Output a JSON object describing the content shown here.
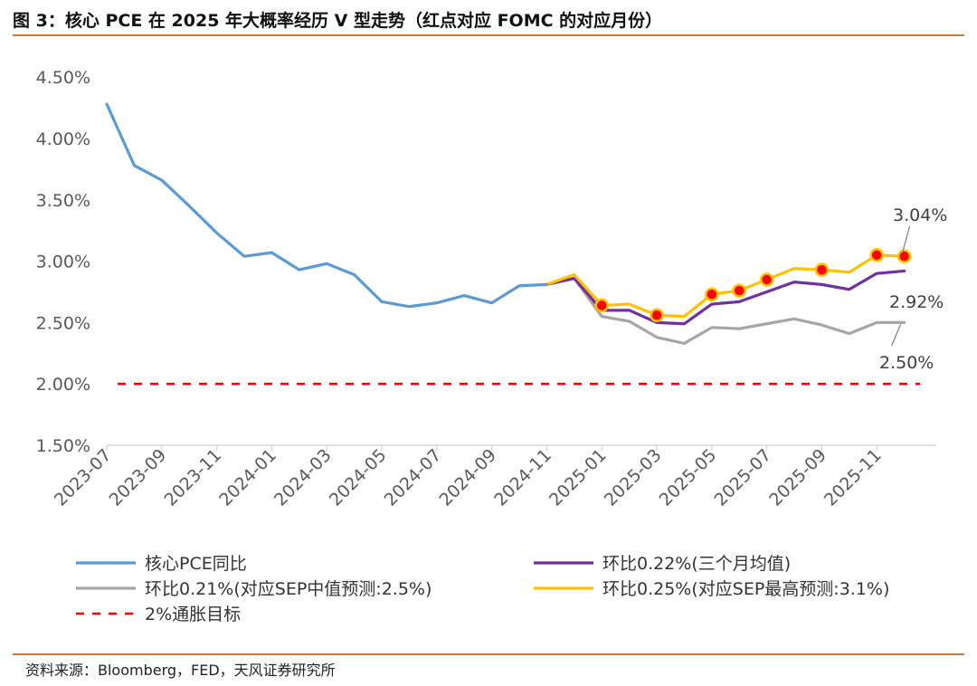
{
  "title": "图 3：核心 PCE 在 2025 年大概率经历 V 型走势（红点对应 FOMC 的对应月份）",
  "source": "资料来源：Bloomberg，FED，天风证券研究所",
  "chart_data": {
    "type": "line",
    "title": "",
    "xlabel": "",
    "ylabel": "",
    "ylim": [
      1.5,
      4.5
    ],
    "yticks": [
      "1.50%",
      "2.00%",
      "2.50%",
      "3.00%",
      "3.50%",
      "4.00%",
      "4.50%"
    ],
    "ytick_values": [
      1.5,
      2.0,
      2.5,
      3.0,
      3.5,
      4.0,
      4.5
    ],
    "x_dates": [
      "2023-07",
      "2023-08",
      "2023-09",
      "2023-10",
      "2023-11",
      "2023-12",
      "2024-01",
      "2024-02",
      "2024-03",
      "2024-04",
      "2024-05",
      "2024-06",
      "2024-07",
      "2024-08",
      "2024-09",
      "2024-10",
      "2024-11",
      "2024-12",
      "2025-01",
      "2025-02",
      "2025-03",
      "2025-04",
      "2025-05",
      "2025-06",
      "2025-07",
      "2025-08",
      "2025-09",
      "2025-10",
      "2025-11",
      "2025-12"
    ],
    "xtick_labels": [
      "2023-07",
      "2023-09",
      "2023-11",
      "2024-01",
      "2024-03",
      "2024-05",
      "2024-07",
      "2024-09",
      "2024-11",
      "2025-01",
      "2025-03",
      "2025-05",
      "2025-07",
      "2025-09",
      "2025-11"
    ],
    "grid": false,
    "legend_position": "bottom",
    "colors": {
      "actual": "#5b9bd5",
      "mom022": "#7030a0",
      "mom021": "#a6a6a6",
      "mom025": "#ffc000",
      "target": "#ff0000",
      "fomc_fill": "#ff0000",
      "fomc_stroke": "#ffc000"
    },
    "series": [
      {
        "name": "核心PCE同比",
        "color": "#5b9bd5",
        "dash": false,
        "x": [
          "2023-07",
          "2023-08",
          "2023-09",
          "2023-10",
          "2023-11",
          "2023-12",
          "2024-01",
          "2024-02",
          "2024-03",
          "2024-04",
          "2024-05",
          "2024-06",
          "2024-07",
          "2024-08",
          "2024-09",
          "2024-10",
          "2024-11"
        ],
        "values": [
          4.28,
          3.78,
          3.66,
          3.45,
          3.23,
          3.04,
          3.07,
          2.93,
          2.98,
          2.89,
          2.67,
          2.63,
          2.66,
          2.72,
          2.66,
          2.8,
          2.81
        ]
      },
      {
        "name": "环比0.22%(三个月均值)",
        "color": "#7030a0",
        "dash": false,
        "x": [
          "2024-11",
          "2024-12",
          "2025-01",
          "2025-02",
          "2025-03",
          "2025-04",
          "2025-05",
          "2025-06",
          "2025-07",
          "2025-08",
          "2025-09",
          "2025-10",
          "2025-11",
          "2025-12"
        ],
        "values": [
          2.81,
          2.86,
          2.6,
          2.6,
          2.5,
          2.49,
          2.65,
          2.67,
          2.75,
          2.83,
          2.81,
          2.77,
          2.9,
          2.92
        ]
      },
      {
        "name": "环比0.21%(对应SEP中值预测:2.5%)",
        "color": "#a6a6a6",
        "dash": false,
        "x": [
          "2024-11",
          "2024-12",
          "2025-01",
          "2025-02",
          "2025-03",
          "2025-04",
          "2025-05",
          "2025-06",
          "2025-07",
          "2025-08",
          "2025-09",
          "2025-10",
          "2025-11",
          "2025-12"
        ],
        "values": [
          2.81,
          2.86,
          2.55,
          2.51,
          2.38,
          2.33,
          2.46,
          2.45,
          2.49,
          2.53,
          2.48,
          2.41,
          2.5,
          2.5
        ]
      },
      {
        "name": "环比0.25%(对应SEP最高预测:3.1%)",
        "color": "#ffc000",
        "dash": false,
        "x": [
          "2024-11",
          "2024-12",
          "2025-01",
          "2025-02",
          "2025-03",
          "2025-04",
          "2025-05",
          "2025-06",
          "2025-07",
          "2025-08",
          "2025-09",
          "2025-10",
          "2025-11",
          "2025-12"
        ],
        "values": [
          2.81,
          2.89,
          2.64,
          2.65,
          2.56,
          2.55,
          2.73,
          2.76,
          2.85,
          2.94,
          2.93,
          2.91,
          3.05,
          3.04
        ]
      },
      {
        "name": "2%通胀目标",
        "color": "#ff0000",
        "dash": true,
        "x": [
          "2023-07",
          "2025-12"
        ],
        "values": [
          2.0,
          2.0
        ]
      }
    ],
    "fomc_points": {
      "x": [
        "2025-01",
        "2025-03",
        "2025-05",
        "2025-06",
        "2025-07",
        "2025-09",
        "2025-11",
        "2025-12"
      ],
      "values": [
        2.64,
        2.56,
        2.73,
        2.76,
        2.85,
        2.93,
        3.05,
        3.04
      ]
    },
    "annotations": [
      {
        "text": "3.04%",
        "x": "2025-12",
        "y": 3.04
      },
      {
        "text": "2.92%",
        "x": "2025-12",
        "y": 2.92
      },
      {
        "text": "2.50%",
        "x": "2025-12",
        "y": 2.5
      }
    ],
    "legend_order": [
      "核心PCE同比",
      "环比0.22%(三个月均值)",
      "环比0.21%(对应SEP中值预测:2.5%)",
      "环比0.25%(对应SEP最高预测:3.1%)",
      "2%通胀目标"
    ]
  }
}
